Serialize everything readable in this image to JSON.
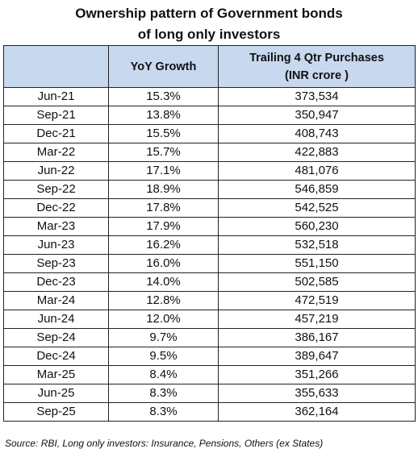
{
  "title_line1": "Ownership pattern of Government bonds",
  "title_line2": "of long only investors",
  "chart_data": {
    "type": "table",
    "columns": [
      "",
      "YoY Growth",
      "Trailing 4 Qtr Purchases (INR crore )"
    ],
    "header_line1": "Trailing 4 Qtr Purchases",
    "header_line2": "(INR crore )",
    "rows": [
      [
        "Jun-21",
        "15.3%",
        "373,534"
      ],
      [
        "Sep-21",
        "13.8%",
        "350,947"
      ],
      [
        "Dec-21",
        "15.5%",
        "408,743"
      ],
      [
        "Mar-22",
        "15.7%",
        "422,883"
      ],
      [
        "Jun-22",
        "17.1%",
        "481,076"
      ],
      [
        "Sep-22",
        "18.9%",
        "546,859"
      ],
      [
        "Dec-22",
        "17.8%",
        "542,525"
      ],
      [
        "Mar-23",
        "17.9%",
        "560,230"
      ],
      [
        "Jun-23",
        "16.2%",
        "532,518"
      ],
      [
        "Sep-23",
        "16.0%",
        "551,150"
      ],
      [
        "Dec-23",
        "14.0%",
        "502,585"
      ],
      [
        "Mar-24",
        "12.8%",
        "472,519"
      ],
      [
        "Jun-24",
        "12.0%",
        "457,219"
      ],
      [
        "Sep-24",
        "9.7%",
        "386,167"
      ],
      [
        "Dec-24",
        "9.5%",
        "389,647"
      ],
      [
        "Mar-25",
        "8.4%",
        "351,266"
      ],
      [
        "Jun-25",
        "8.3%",
        "355,633"
      ],
      [
        "Sep-25",
        "8.3%",
        "362,164"
      ]
    ]
  },
  "source": "Source: RBI, Long only investors: Insurance, Pensions, Others (ex States)",
  "colors": {
    "header_fill": "#c8d8ee",
    "border": "#222222"
  }
}
